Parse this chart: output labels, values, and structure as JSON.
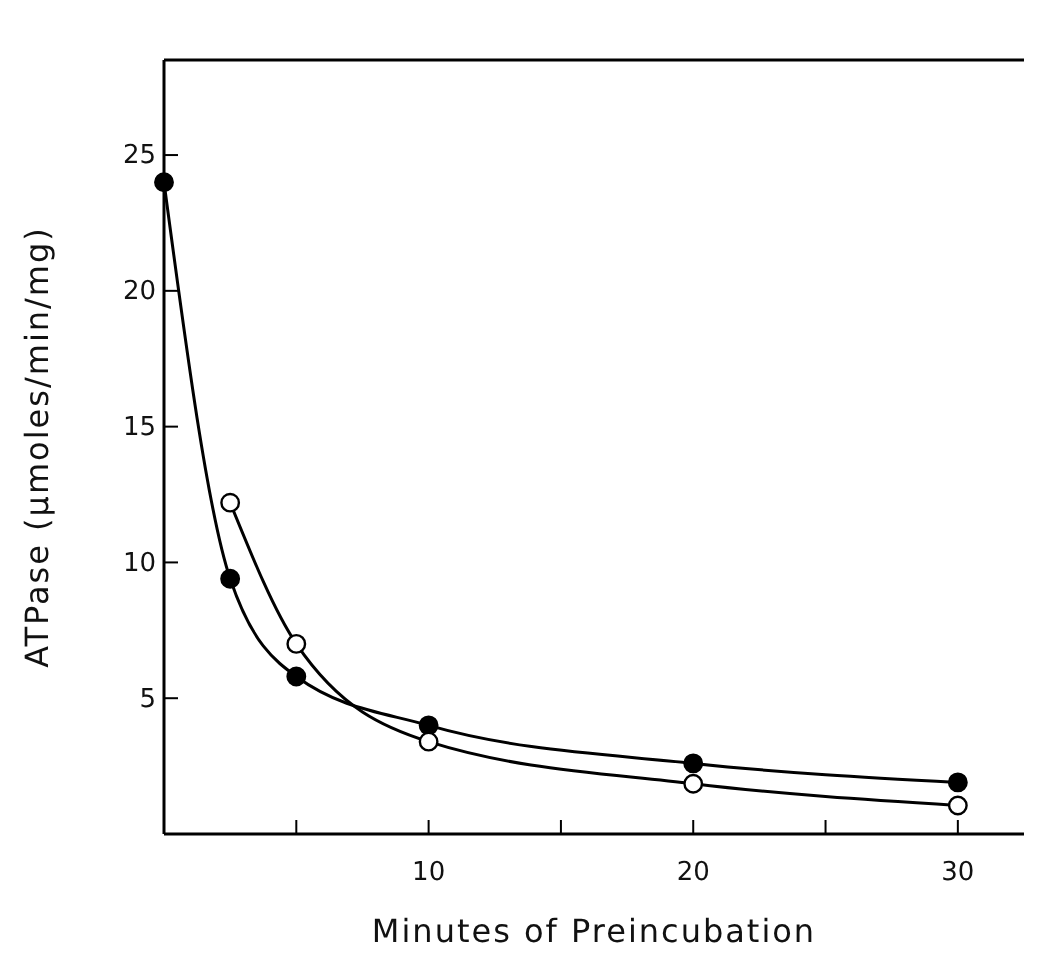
{
  "chart_data": {
    "type": "line",
    "xlabel": "Minutes of Preincubation",
    "ylabel": "ATPase (μmoles/min/mg)",
    "x": [
      0,
      2.5,
      5,
      10,
      20,
      30
    ],
    "series": [
      {
        "color": "#000000",
        "values": [
          24,
          9.4,
          5.8,
          4.0,
          2.6,
          1.9
        ]
      },
      {
        "color": "#000000",
        "colors": [
          null,
          "#ffffff",
          "#ffffff",
          "#ffffff",
          "#ffffff",
          "#ffffff"
        ],
        "values": [
          null,
          12.2,
          7.0,
          3.4,
          1.85,
          1.05
        ]
      }
    ],
    "xlim": [
      0,
      32.5
    ],
    "ylim": [
      0,
      28.5
    ],
    "xticks": [
      {
        "value": 5,
        "label": null
      },
      10,
      {
        "value": 15,
        "label": null
      },
      20,
      {
        "value": 25,
        "label": null
      },
      30
    ],
    "yticks": [
      5,
      10,
      15,
      20,
      25
    ],
    "marker": "circle",
    "line_style": "solid",
    "grid": false
  }
}
